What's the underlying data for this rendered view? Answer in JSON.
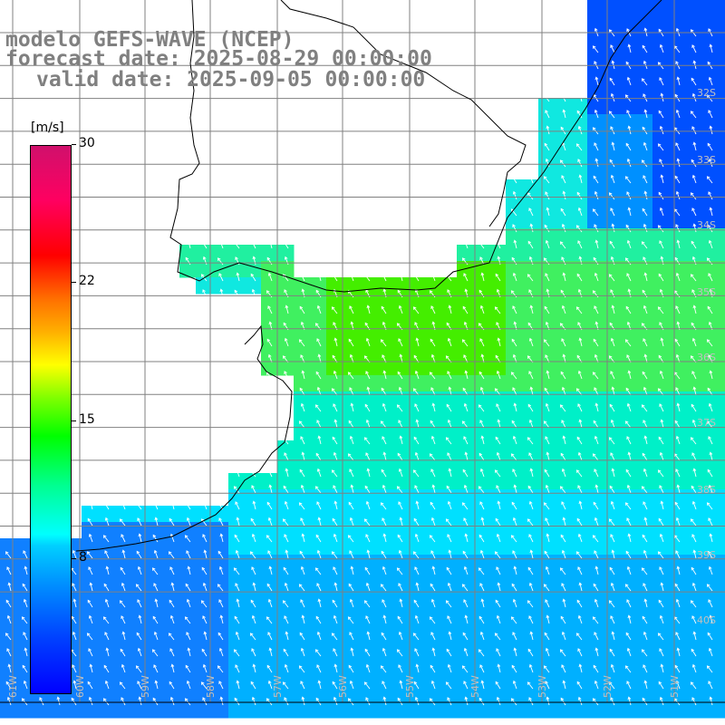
{
  "title": {
    "line1": "modelo GEFS-WAVE (NCEP)",
    "line2": "forecast date: 2025-08-29 00:00:00",
    "line3": "valid date: 2025-09-05 00:00:00"
  },
  "colorbar": {
    "unit": "[m/s]",
    "min": 0,
    "max": 30,
    "ticks": [
      "30",
      "22",
      "15",
      "8"
    ],
    "tick_values": [
      30,
      22,
      15,
      8
    ]
  },
  "map": {
    "variable": "wind speed with direction arrows",
    "latitude_labels": [
      "32S",
      "33S",
      "34S",
      "35S",
      "36S",
      "37S",
      "38S",
      "39S",
      "40S"
    ],
    "longitude_labels": [
      "61W",
      "60W",
      "59W",
      "58W",
      "57W",
      "56W",
      "55W",
      "54W",
      "53W",
      "52W",
      "51W"
    ],
    "colors": {
      "land": "#ffffff",
      "coast": "#000000",
      "grid": "#808080",
      "arrows": "#ffffff",
      "strong_wind": "#44ee00",
      "moderate_wind": "#00e8f0",
      "weak_wind": "#0060ff"
    }
  }
}
